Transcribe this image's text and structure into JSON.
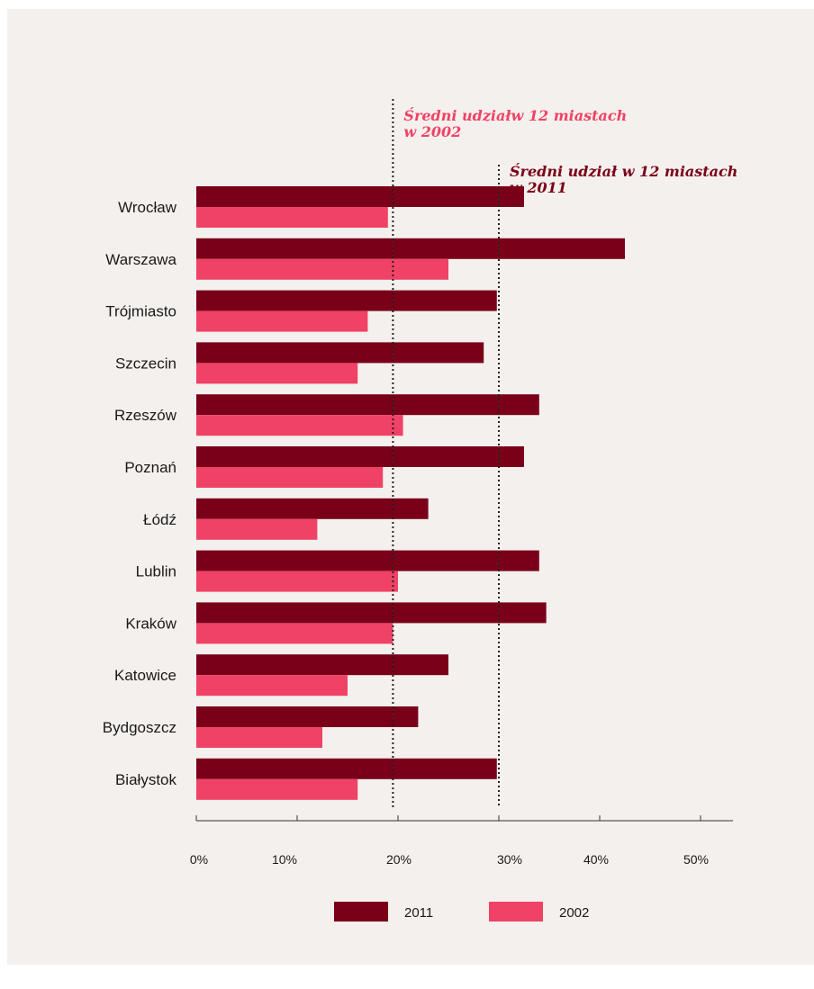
{
  "chart_data": {
    "type": "bar",
    "orientation": "horizontal",
    "categories": [
      "Wrocław",
      "Warszawa",
      "Trójmiasto",
      "Szczecin",
      "Rzeszów",
      "Poznań",
      "Łódź",
      "Lublin",
      "Kraków",
      "Katowice",
      "Bydgoszcz",
      "Białystok"
    ],
    "series": [
      {
        "name": "2011",
        "color": "#7a0019",
        "values": [
          32.5,
          42.5,
          29.8,
          28.5,
          34.0,
          32.5,
          23.0,
          34.0,
          34.7,
          25.0,
          22.0,
          29.8
        ]
      },
      {
        "name": "2002",
        "color": "#f04266",
        "values": [
          19.0,
          25.0,
          17.0,
          16.0,
          20.5,
          18.5,
          12.0,
          20.0,
          19.5,
          15.0,
          12.5,
          16.0
        ]
      }
    ],
    "xlim": [
      0,
      50
    ],
    "xticks": [
      "0%",
      "10%",
      "20%",
      "30%",
      "40%",
      "50%"
    ],
    "reference_lines": [
      {
        "value": 19.5,
        "label_line1": "Średni udziałw 12 miastach",
        "label_line2": "w 2002",
        "color": "#f04266"
      },
      {
        "value": 30.0,
        "label_line1": "Średni udział w 12 miastach",
        "label_line2": "w 2011",
        "color": "#7a0019"
      }
    ],
    "legend": {
      "placement": "bottom",
      "entries": [
        "2011",
        "2002"
      ]
    },
    "grid": false
  }
}
